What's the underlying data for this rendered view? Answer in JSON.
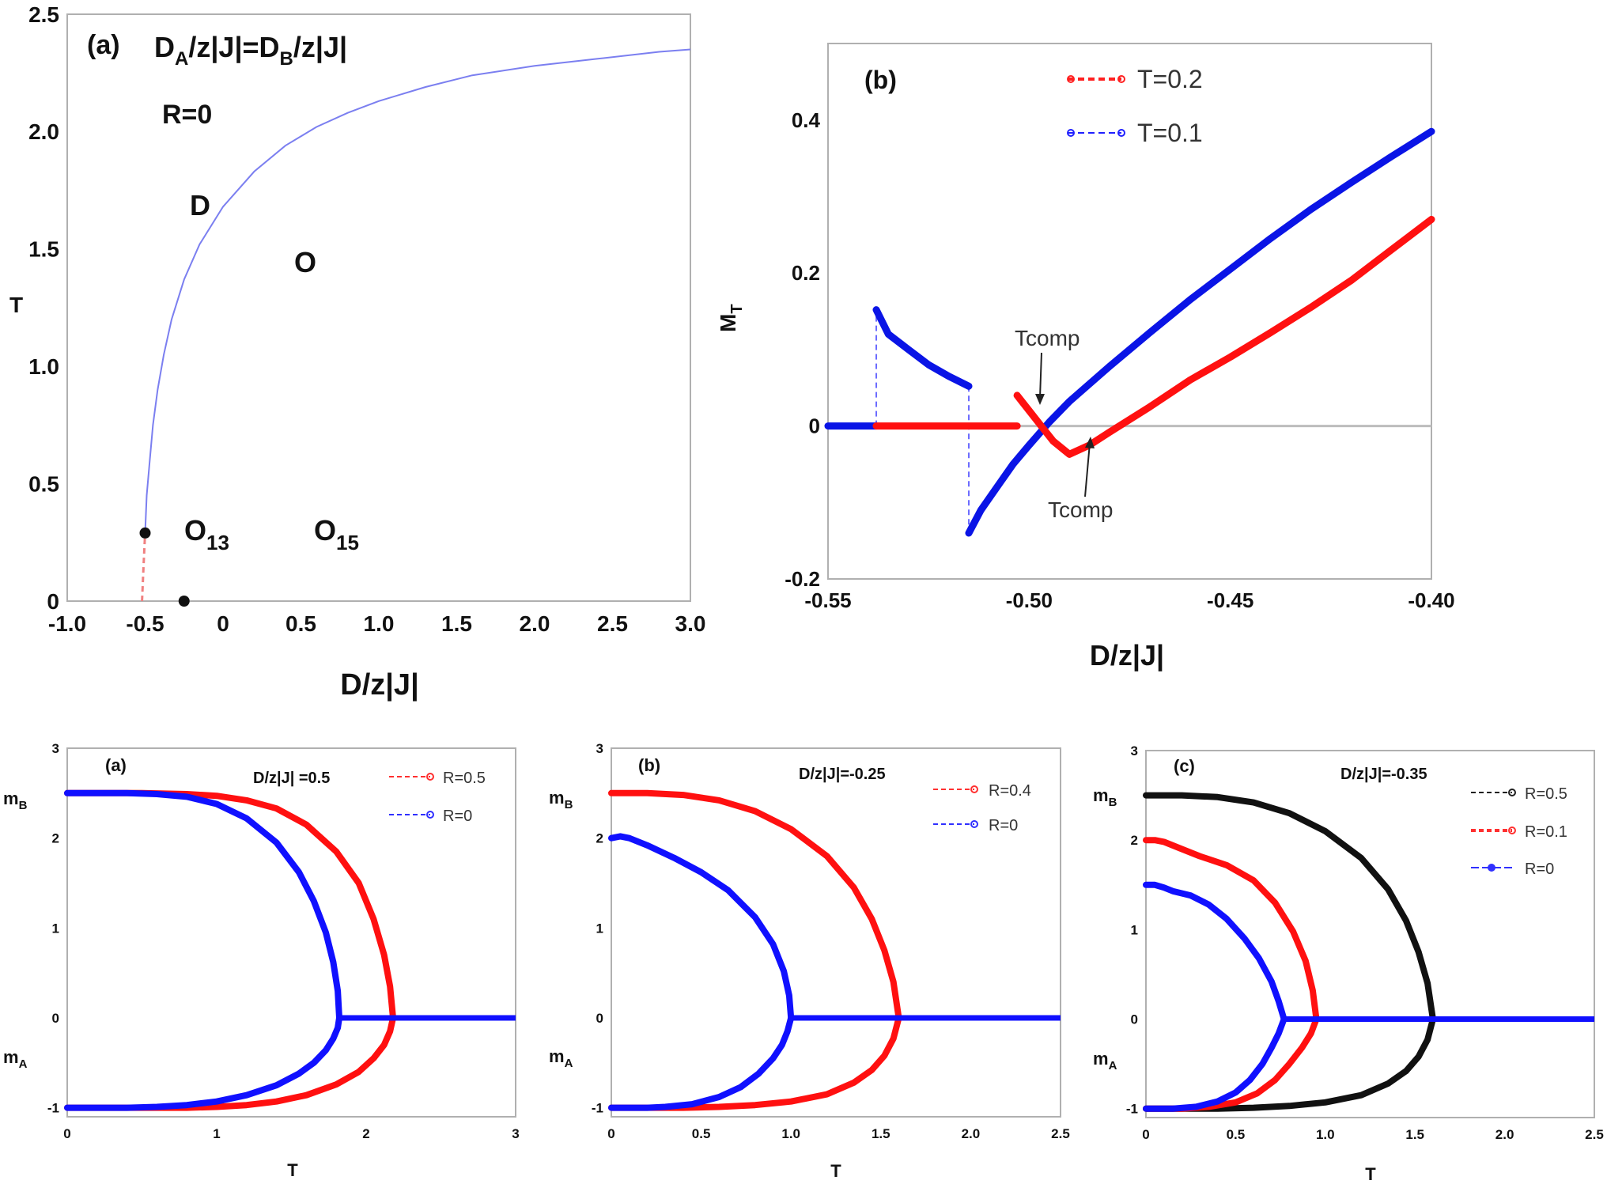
{
  "chart_data": [
    {
      "panel": "a",
      "type": "line",
      "panel_label": "(a)",
      "annotations": {
        "condition_main": "D",
        "condition_sub": "A",
        "condition_rest": "/z|J|=D",
        "condition_sub2": "B",
        "condition_end": "/z|J|",
        "r_label": "R=0",
        "region_D": "D",
        "region_O": "O",
        "region_O13_main": "O",
        "region_O13_sub": "13",
        "region_O15_main": "O",
        "region_O15_sub": "15"
      },
      "xlabel": "D/z|J|",
      "ylabel": "T",
      "xlim": [
        -1.0,
        3.0
      ],
      "ylim": [
        0,
        2.5
      ],
      "xticks": [
        "-1.0",
        "-0.5",
        "0",
        "0.5",
        "1.0",
        "1.5",
        "2.0",
        "2.5",
        "3.0"
      ],
      "yticks": [
        "0",
        "0.5",
        "1.0",
        "1.5",
        "2.0",
        "2.5"
      ],
      "series": [
        {
          "style": "solid",
          "color": "#7b7ff0",
          "x": [
            -0.5,
            -0.49,
            -0.47,
            -0.45,
            -0.42,
            -0.38,
            -0.33,
            -0.25,
            -0.15,
            0.0,
            0.2,
            0.4,
            0.6,
            0.8,
            1.0,
            1.3,
            1.6,
            2.0,
            2.4,
            2.8,
            3.0
          ],
          "y": [
            0.29,
            0.45,
            0.6,
            0.75,
            0.9,
            1.05,
            1.2,
            1.37,
            1.52,
            1.68,
            1.83,
            1.94,
            2.02,
            2.08,
            2.13,
            2.19,
            2.24,
            2.28,
            2.31,
            2.34,
            2.35
          ]
        },
        {
          "style": "dashed",
          "color": "#f08080",
          "x": [
            -0.52,
            -0.515,
            -0.51,
            -0.505,
            -0.5
          ],
          "y": [
            0.0,
            0.07,
            0.15,
            0.22,
            0.29
          ]
        }
      ],
      "points": [
        {
          "x": -0.5,
          "y": 0.29
        },
        {
          "x": -0.25,
          "y": 0.0
        }
      ]
    },
    {
      "panel": "b",
      "type": "line",
      "panel_label": "(b)",
      "xlabel": "D/z|J|",
      "ylabel_main": "M",
      "ylabel_sub": "T",
      "xlim": [
        -0.55,
        -0.4
      ],
      "ylim": [
        -0.2,
        0.5
      ],
      "xticks": [
        "-0.55",
        "-0.50",
        "-0.45",
        "-0.40"
      ],
      "yticks": [
        "-0.2",
        "0",
        "0.2",
        "0.4"
      ],
      "legend": [
        {
          "label": "T=0.2",
          "color": "#ff2020"
        },
        {
          "label": "T=0.1",
          "color": "#2020ff"
        }
      ],
      "annotations": [
        {
          "text": "Tcomp"
        },
        {
          "text": "Tcomp"
        }
      ],
      "series": [
        {
          "name": "T=0.1",
          "color": "#0a14e6",
          "segments": [
            {
              "x": [
                -0.55,
                -0.538
              ],
              "y": [
                0,
                0
              ]
            },
            {
              "x": [
                -0.538,
                -0.535,
                -0.53,
                -0.525,
                -0.52,
                -0.515
              ],
              "y": [
                0.152,
                0.12,
                0.1,
                0.08,
                0.065,
                0.052
              ]
            },
            {
              "x": [
                -0.515,
                -0.512,
                -0.508,
                -0.504,
                -0.5,
                -0.495,
                -0.49,
                -0.48,
                -0.47,
                -0.46,
                -0.45,
                -0.44,
                -0.43,
                -0.42,
                -0.41,
                -0.4
              ],
              "y": [
                -0.14,
                -0.11,
                -0.08,
                -0.05,
                -0.025,
                0.005,
                0.032,
                0.078,
                0.122,
                0.165,
                0.205,
                0.245,
                0.283,
                0.318,
                0.352,
                0.385
              ]
            }
          ]
        },
        {
          "name": "T=0.2",
          "color": "#ff1010",
          "segments": [
            {
              "x": [
                -0.538,
                -0.503
              ],
              "y": [
                0,
                0
              ]
            },
            {
              "x": [
                -0.503,
                -0.5,
                -0.497,
                -0.494,
                -0.49,
                -0.485,
                -0.48,
                -0.47,
                -0.46,
                -0.45,
                -0.44,
                -0.43,
                -0.42,
                -0.41,
                -0.4
              ],
              "y": [
                0.04,
                0.02,
                0.0,
                -0.02,
                -0.037,
                -0.025,
                -0.008,
                0.025,
                0.06,
                0.09,
                0.122,
                0.155,
                0.19,
                0.23,
                0.27
              ]
            }
          ]
        }
      ],
      "transitions": [
        {
          "x": -0.538,
          "y_from": 0,
          "y_to": 0.152,
          "color": "#6a6aff"
        },
        {
          "x": -0.515,
          "y_from": 0.052,
          "y_to": -0.14,
          "color": "#6a6aff"
        }
      ]
    },
    {
      "panel": "c1",
      "type": "line",
      "panel_label": "(a)",
      "title": "D/z|J| =0.5",
      "xlabel": "T",
      "xlim": [
        0,
        3
      ],
      "ylim": [
        -1.1,
        3
      ],
      "xticks": [
        "0",
        "1",
        "2",
        "3"
      ],
      "yticks": [
        "-1",
        "0",
        "1",
        "2",
        "3"
      ],
      "side_labels": {
        "mB_main": "m",
        "mB_sub": "B",
        "mA_main": "m",
        "mA_sub": "A"
      },
      "legend": [
        {
          "label": "R=0.5",
          "color": "#ff3030"
        },
        {
          "label": "R=0",
          "color": "#3030ff"
        }
      ],
      "series": [
        {
          "name": "R=0.5",
          "color": "#ff1010",
          "tc": 2.18,
          "upper_x": [
            0,
            0.5,
            0.8,
            1.0,
            1.2,
            1.4,
            1.6,
            1.8,
            1.95,
            2.05,
            2.12,
            2.16,
            2.18
          ],
          "upper_y": [
            2.5,
            2.5,
            2.49,
            2.47,
            2.42,
            2.33,
            2.15,
            1.85,
            1.5,
            1.1,
            0.7,
            0.35,
            0.0
          ],
          "lower_x": [
            0,
            0.5,
            0.8,
            1.0,
            1.2,
            1.4,
            1.6,
            1.8,
            1.95,
            2.05,
            2.12,
            2.16,
            2.18
          ],
          "lower_y": [
            -1.0,
            -1.0,
            -1.0,
            -0.99,
            -0.97,
            -0.93,
            -0.86,
            -0.74,
            -0.6,
            -0.45,
            -0.3,
            -0.15,
            0.0
          ]
        },
        {
          "name": "R=0",
          "color": "#1010ff",
          "tc": 1.82,
          "upper_x": [
            0,
            0.4,
            0.6,
            0.8,
            1.0,
            1.2,
            1.4,
            1.55,
            1.65,
            1.73,
            1.78,
            1.81,
            1.82
          ],
          "upper_y": [
            2.5,
            2.5,
            2.49,
            2.46,
            2.38,
            2.22,
            1.95,
            1.62,
            1.3,
            0.95,
            0.62,
            0.3,
            0.0
          ],
          "lower_x": [
            0,
            0.4,
            0.6,
            0.8,
            1.0,
            1.2,
            1.4,
            1.55,
            1.65,
            1.73,
            1.78,
            1.81,
            1.82
          ],
          "lower_y": [
            -1.0,
            -1.0,
            -0.99,
            -0.97,
            -0.93,
            -0.86,
            -0.75,
            -0.62,
            -0.5,
            -0.36,
            -0.23,
            -0.11,
            0.0
          ]
        }
      ],
      "zero_line": {
        "x": [
          1.82,
          3.0
        ],
        "color": "#1010ff"
      }
    },
    {
      "panel": "c2",
      "type": "line",
      "panel_label": "(b)",
      "title": "D/z|J|=-0.25",
      "xlabel": "T",
      "xlim": [
        0,
        2.5
      ],
      "ylim": [
        -1.1,
        3
      ],
      "xticks": [
        "0",
        "0.5",
        "1.0",
        "1.5",
        "2.0",
        "2.5"
      ],
      "yticks": [
        "-1",
        "0",
        "1",
        "2",
        "3"
      ],
      "side_labels": {
        "mB_main": "m",
        "mB_sub": "B",
        "mA_main": "m",
        "mA_sub": "A"
      },
      "legend": [
        {
          "label": "R=0.4",
          "color": "#ff3030"
        },
        {
          "label": "R=0",
          "color": "#3030ff"
        }
      ],
      "series": [
        {
          "name": "R=0.4",
          "color": "#ff1010",
          "tc": 1.6,
          "upper_x": [
            0,
            0.2,
            0.4,
            0.6,
            0.8,
            1.0,
            1.2,
            1.35,
            1.45,
            1.52,
            1.57,
            1.6
          ],
          "upper_y": [
            2.5,
            2.5,
            2.48,
            2.42,
            2.3,
            2.1,
            1.8,
            1.45,
            1.1,
            0.75,
            0.4,
            0.0
          ],
          "lower_x": [
            0,
            0.2,
            0.4,
            0.6,
            0.8,
            1.0,
            1.2,
            1.35,
            1.45,
            1.52,
            1.57,
            1.6
          ],
          "lower_y": [
            -1.0,
            -1.0,
            -1.0,
            -0.99,
            -0.97,
            -0.93,
            -0.85,
            -0.72,
            -0.58,
            -0.42,
            -0.23,
            0.0
          ]
        },
        {
          "name": "R=0",
          "color": "#1010ff",
          "tc": 1.0,
          "upper_x": [
            0,
            0.05,
            0.1,
            0.2,
            0.35,
            0.5,
            0.65,
            0.8,
            0.9,
            0.96,
            0.99,
            1.0
          ],
          "upper_y": [
            2.0,
            2.02,
            2.0,
            1.92,
            1.78,
            1.62,
            1.42,
            1.12,
            0.82,
            0.52,
            0.25,
            0.0
          ],
          "lower_x": [
            0,
            0.2,
            0.3,
            0.45,
            0.6,
            0.72,
            0.82,
            0.9,
            0.95,
            0.98,
            1.0
          ],
          "lower_y": [
            -1.0,
            -1.0,
            -0.99,
            -0.96,
            -0.88,
            -0.77,
            -0.62,
            -0.45,
            -0.3,
            -0.15,
            0.0
          ]
        }
      ],
      "zero_line": {
        "x": [
          1.0,
          2.5
        ],
        "color": "#1010ff"
      }
    },
    {
      "panel": "c3",
      "type": "line",
      "panel_label": "(c)",
      "title": "D/z|J|=-0.35",
      "xlabel": "T",
      "xlim": [
        0,
        2.5
      ],
      "ylim": [
        -1.1,
        3
      ],
      "xticks": [
        "0",
        "0.5",
        "1.0",
        "1.5",
        "2.0",
        "2.5"
      ],
      "yticks": [
        "-1",
        "0",
        "1",
        "2",
        "3"
      ],
      "side_labels": {
        "mB_main": "m",
        "mB_sub": "B",
        "mA_main": "m",
        "mA_sub": "A"
      },
      "legend": [
        {
          "label": "R=0.5",
          "color": "#202020"
        },
        {
          "label": "R=0.1",
          "color": "#ff3030"
        },
        {
          "label": "R=0",
          "color": "#3030ff"
        }
      ],
      "series": [
        {
          "name": "R=0.5",
          "color": "#111111",
          "tc": 1.6,
          "upper_x": [
            0,
            0.2,
            0.4,
            0.6,
            0.8,
            1.0,
            1.2,
            1.35,
            1.45,
            1.52,
            1.57,
            1.6
          ],
          "upper_y": [
            2.5,
            2.5,
            2.48,
            2.42,
            2.3,
            2.1,
            1.8,
            1.45,
            1.1,
            0.75,
            0.4,
            0.0
          ],
          "lower_x": [
            0,
            0.2,
            0.4,
            0.6,
            0.8,
            1.0,
            1.2,
            1.35,
            1.45,
            1.52,
            1.57,
            1.6
          ],
          "lower_y": [
            -1.0,
            -1.0,
            -1.0,
            -0.99,
            -0.97,
            -0.93,
            -0.85,
            -0.72,
            -0.58,
            -0.42,
            -0.23,
            0.0
          ]
        },
        {
          "name": "R=0.1",
          "color": "#ff1010",
          "tc": 0.95,
          "upper_x": [
            0,
            0.05,
            0.1,
            0.2,
            0.3,
            0.45,
            0.6,
            0.72,
            0.82,
            0.89,
            0.93,
            0.95
          ],
          "upper_y": [
            2.0,
            2.0,
            1.98,
            1.9,
            1.82,
            1.72,
            1.55,
            1.3,
            0.98,
            0.65,
            0.32,
            0.0
          ],
          "lower_x": [
            0,
            0.2,
            0.35,
            0.5,
            0.62,
            0.72,
            0.8,
            0.87,
            0.92,
            0.95
          ],
          "lower_y": [
            -1.0,
            -1.0,
            -0.98,
            -0.93,
            -0.83,
            -0.68,
            -0.5,
            -0.32,
            -0.16,
            0.0
          ]
        },
        {
          "name": "R=0",
          "color": "#1010ff",
          "tc": 0.77,
          "upper_x": [
            0,
            0.05,
            0.1,
            0.15,
            0.25,
            0.35,
            0.45,
            0.55,
            0.63,
            0.7,
            0.74,
            0.77
          ],
          "upper_y": [
            1.5,
            1.5,
            1.47,
            1.43,
            1.38,
            1.28,
            1.12,
            0.9,
            0.68,
            0.42,
            0.2,
            0.0
          ],
          "lower_x": [
            0,
            0.15,
            0.28,
            0.4,
            0.5,
            0.58,
            0.65,
            0.7,
            0.74,
            0.77
          ],
          "lower_y": [
            -1.0,
            -1.0,
            -0.98,
            -0.92,
            -0.82,
            -0.68,
            -0.5,
            -0.32,
            -0.16,
            0.0
          ]
        }
      ],
      "zero_line": {
        "x": [
          0.77,
          2.5
        ],
        "color": "#1010ff"
      }
    }
  ]
}
